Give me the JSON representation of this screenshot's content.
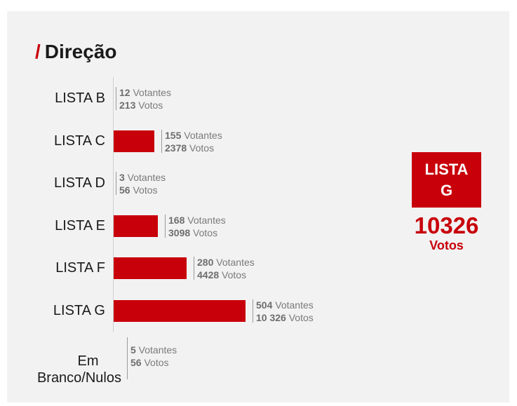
{
  "title": "Direção",
  "title_slash": "/",
  "colors": {
    "accent": "#c8000a",
    "background": "#f2f2f2"
  },
  "winner": {
    "label": "LISTA G",
    "votes": "10326",
    "unit": "Votos"
  },
  "chart_data": {
    "type": "bar",
    "orientation": "horizontal",
    "categories": [
      "LISTA B",
      "LISTA C",
      "LISTA D",
      "LISTA E",
      "LISTA F",
      "LISTA G",
      "Em Branco/Nulos"
    ],
    "series": [
      {
        "name": "Votantes",
        "values": [
          12,
          155,
          3,
          168,
          280,
          504,
          5
        ]
      },
      {
        "name": "Votos",
        "values": [
          213,
          2378,
          56,
          3098,
          4428,
          10326,
          56
        ]
      }
    ],
    "bar_series": "Votantes",
    "annotations": [
      {
        "votantes": "12",
        "votos": "213"
      },
      {
        "votantes": "155",
        "votos": "2378"
      },
      {
        "votantes": "3",
        "votos": "56"
      },
      {
        "votantes": "168",
        "votos": "3098"
      },
      {
        "votantes": "280",
        "votos": "4428"
      },
      {
        "votantes": "504",
        "votos": "10 326"
      },
      {
        "votantes": "5",
        "votos": "56"
      }
    ],
    "unit_votantes": "Votantes",
    "unit_votos": "Votos",
    "title": "Direção",
    "xlabel": "",
    "ylabel": ""
  }
}
